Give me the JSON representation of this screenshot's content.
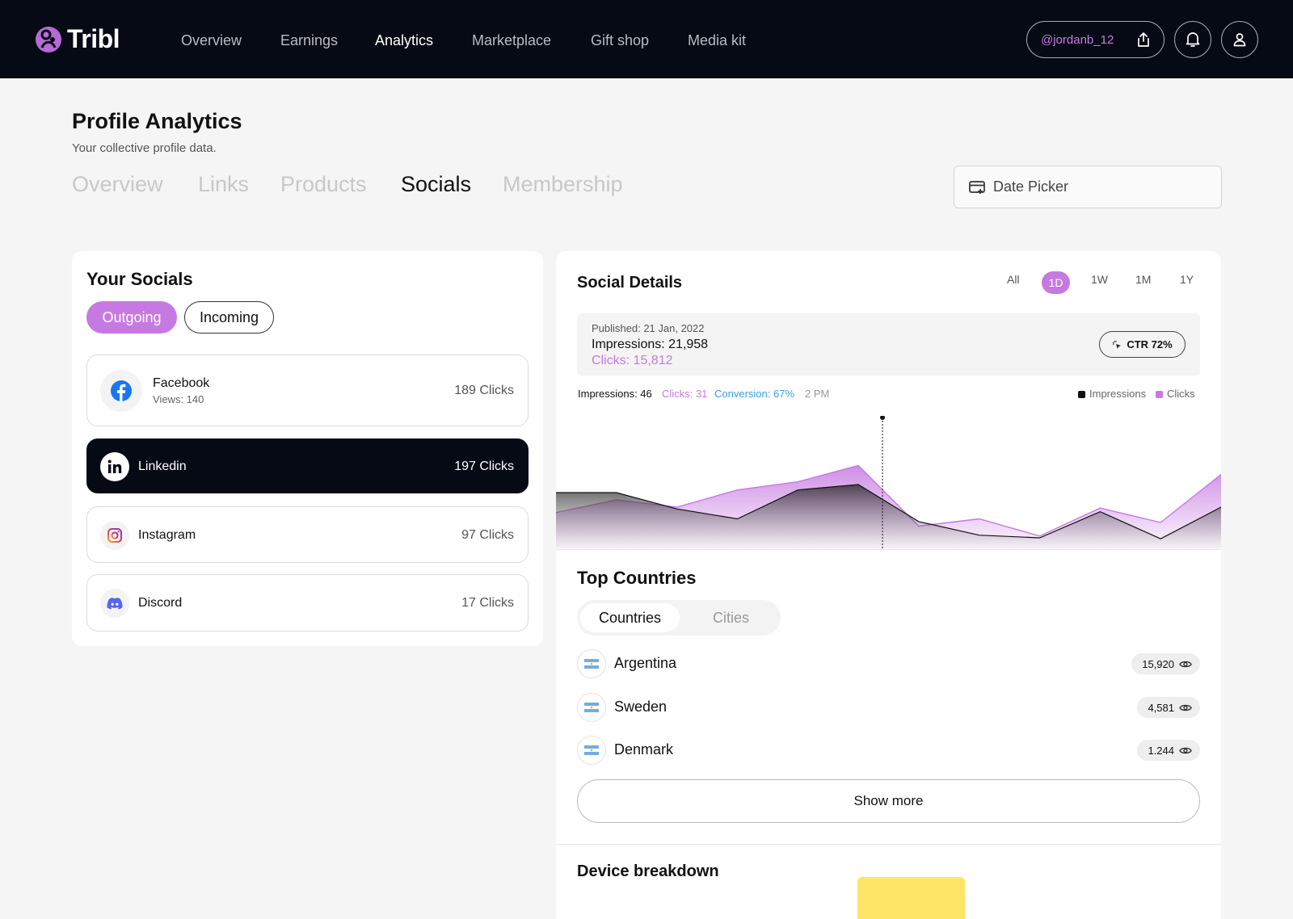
{
  "app": {
    "brand": "Tribl",
    "nav": [
      "Overview",
      "Earnings",
      "Analytics",
      "Marketplace",
      "Gift shop",
      "Media kit"
    ],
    "nav_active": "Analytics",
    "handle": "@jordanb_12"
  },
  "header": {
    "title": "Profile Analytics",
    "subtitle": "Your collective profile data.",
    "tabs": [
      "Overview",
      "Links",
      "Products",
      "Socials",
      "Membership"
    ],
    "active_tab": "Socials",
    "date_picker_label": "Date Picker"
  },
  "socials": {
    "title": "Your Socials",
    "toggle": [
      "Outgoing",
      "Incoming"
    ],
    "toggle_active": "Outgoing",
    "items": [
      {
        "name": "Facebook",
        "views": "Views: 140",
        "clicks": "189 Clicks",
        "icon": "facebook-icon"
      },
      {
        "name": "Linkedin",
        "clicks": "197 Clicks",
        "icon": "linkedin-icon",
        "selected": true
      },
      {
        "name": "Instagram",
        "clicks": "97 Clicks",
        "icon": "instagram-icon"
      },
      {
        "name": "Discord",
        "clicks": "17 Clicks",
        "icon": "discord-icon"
      }
    ]
  },
  "details": {
    "title": "Social Details",
    "ranges": [
      "All",
      "1D",
      "1W",
      "1M",
      "1Y"
    ],
    "range_active": "1D",
    "published": "Published: 21 Jan, 2022",
    "impressions": "Impressions: 21,958",
    "clicks": "Clicks: 15,812",
    "ctr": "CTR 72%",
    "hover": {
      "impressions": "Impressions: 46",
      "clicks": "Clicks: 31",
      "conversion": "Conversion: 67%",
      "time": "2 PM"
    },
    "legend": [
      "Impressions",
      "Clicks"
    ]
  },
  "chart_data": {
    "type": "area",
    "series": [
      {
        "name": "Impressions",
        "values": [
          58,
          58,
          40,
          29,
          61,
          67,
          26,
          11,
          8,
          37,
          7,
          42
        ]
      },
      {
        "name": "Clicks",
        "values": [
          36,
          50,
          42,
          61,
          70,
          88,
          21,
          29,
          10,
          41,
          25,
          78
        ]
      }
    ],
    "ylim": [
      0,
      100
    ],
    "colors": {
      "Impressions": "#111111",
      "Clicks": "#c67ae1"
    }
  },
  "countries": {
    "title": "Top Countries",
    "tabs": [
      "Countries",
      "Cities"
    ],
    "tab_active": "Countries",
    "rows": [
      {
        "name": "Argentina",
        "count": "15,920"
      },
      {
        "name": "Sweden",
        "count": "4,581"
      },
      {
        "name": "Denmark",
        "count": "1.244"
      }
    ],
    "show_more": "Show more"
  },
  "device": {
    "title": "Device breakdown"
  },
  "colors": {
    "accent": "#c67ae1",
    "nav_bg": "#050a14",
    "conversion": "#3aa0e0"
  }
}
